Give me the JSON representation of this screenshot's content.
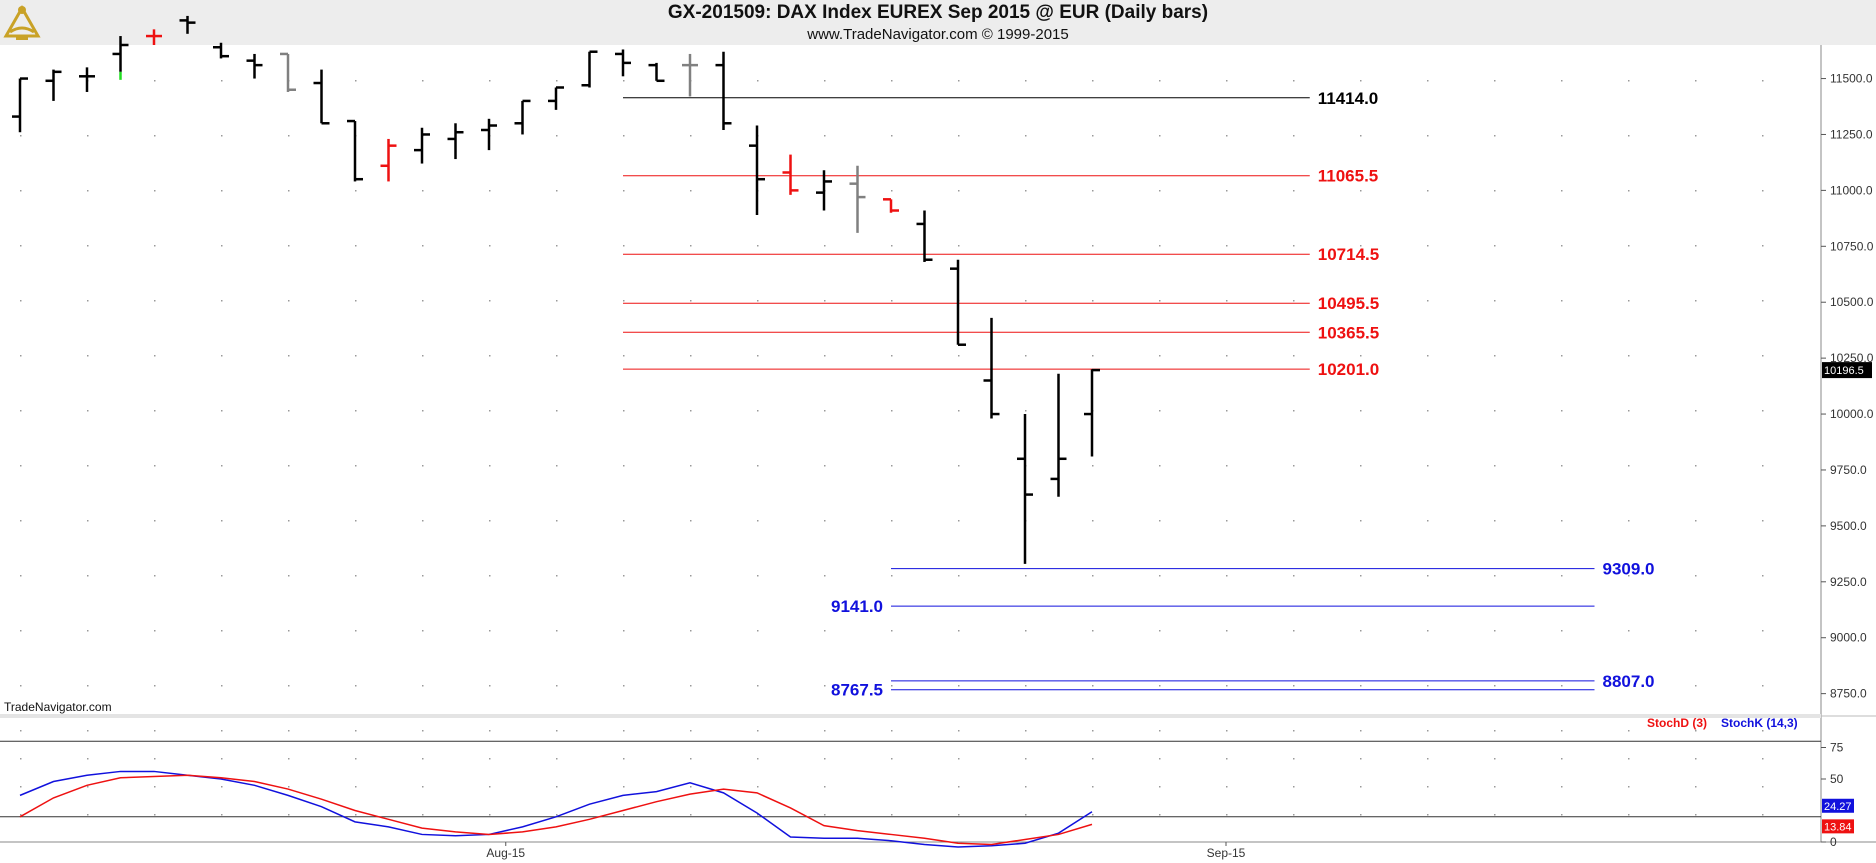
{
  "header": {
    "title": "GX-201509:  DAX Index EUREX Sep 2015 @ EUR  (Daily bars)",
    "subtitle": "www.TradeNavigator.com © 1999-2015",
    "logo_icon": "sextant-icon"
  },
  "watermark": "TradeNavigator.com",
  "colors": {
    "bar_up": "#000000",
    "bar_red": "#ee1111",
    "bar_gray": "#808080",
    "bar_tick_green": "#22dd22",
    "resistance": "#ee1111",
    "support": "#1111dd",
    "pivot": "#000000",
    "stoch_d": "#ee1111",
    "stoch_k": "#1111dd"
  },
  "chart_data": [
    {
      "type": "ohlc",
      "ylim": [
        8650,
        11650
      ],
      "y_ticks": [
        "11500.0",
        "11250.0",
        "11000.0",
        "10750.0",
        "10500.0",
        "10250.0",
        "10000.0",
        "9750.0",
        "9500.0",
        "9250.0",
        "9000.0",
        "8750.0"
      ],
      "last_price_label": "10196.5",
      "x_labels": [
        {
          "label": "Aug-15",
          "index": 14.5
        },
        {
          "label": "Sep-15",
          "index": 36
        }
      ],
      "bars": [
        {
          "o": 11330,
          "h": 11500,
          "l": 11260,
          "c": 11500,
          "color": "black"
        },
        {
          "o": 11490,
          "h": 11540,
          "l": 11400,
          "c": 11530,
          "color": "black"
        },
        {
          "o": 11510,
          "h": 11550,
          "l": 11440,
          "c": 11510,
          "color": "black"
        },
        {
          "o": 11610,
          "h": 11690,
          "l": 11530,
          "c": 11650,
          "color": "green_tick"
        },
        {
          "o": 11690,
          "h": 11720,
          "l": 11650,
          "c": 11690,
          "color": "red"
        },
        {
          "o": 11760,
          "h": 11780,
          "l": 11700,
          "c": 11750,
          "color": "black"
        },
        {
          "o": 11640,
          "h": 11660,
          "l": 11590,
          "c": 11600,
          "color": "black"
        },
        {
          "o": 11580,
          "h": 11610,
          "l": 11500,
          "c": 11560,
          "color": "black"
        },
        {
          "o": 11610,
          "h": 11610,
          "l": 11440,
          "c": 11450,
          "color": "gray"
        },
        {
          "o": 11480,
          "h": 11540,
          "l": 11300,
          "c": 11300,
          "color": "black"
        },
        {
          "o": 11310,
          "h": 11310,
          "l": 11040,
          "c": 11050,
          "color": "black"
        },
        {
          "o": 11110,
          "h": 11230,
          "l": 11040,
          "c": 11200,
          "color": "red"
        },
        {
          "o": 11180,
          "h": 11280,
          "l": 11120,
          "c": 11250,
          "color": "black"
        },
        {
          "o": 11230,
          "h": 11300,
          "l": 11140,
          "c": 11260,
          "color": "black"
        },
        {
          "o": 11270,
          "h": 11320,
          "l": 11180,
          "c": 11290,
          "color": "black"
        },
        {
          "o": 11300,
          "h": 11400,
          "l": 11250,
          "c": 11400,
          "color": "black"
        },
        {
          "o": 11400,
          "h": 11460,
          "l": 11360,
          "c": 11460,
          "color": "black"
        },
        {
          "o": 11470,
          "h": 11620,
          "l": 11460,
          "c": 11620,
          "color": "black"
        },
        {
          "o": 11610,
          "h": 11630,
          "l": 11510,
          "c": 11570,
          "color": "black"
        },
        {
          "o": 11560,
          "h": 11570,
          "l": 11490,
          "c": 11490,
          "color": "black"
        },
        {
          "o": 11560,
          "h": 11610,
          "l": 11420,
          "c": 11560,
          "color": "gray"
        },
        {
          "o": 11560,
          "h": 11620,
          "l": 11270,
          "c": 11300,
          "color": "black"
        },
        {
          "o": 11200,
          "h": 11290,
          "l": 10890,
          "c": 11050,
          "color": "black"
        },
        {
          "o": 11080,
          "h": 11160,
          "l": 10980,
          "c": 11000,
          "color": "red"
        },
        {
          "o": 10990,
          "h": 11090,
          "l": 10910,
          "c": 11040,
          "color": "black"
        },
        {
          "o": 11030,
          "h": 11110,
          "l": 10810,
          "c": 10970,
          "color": "gray"
        },
        {
          "o": 10960,
          "h": 10960,
          "l": 10900,
          "c": 10910,
          "color": "red"
        },
        {
          "o": 10850,
          "h": 10910,
          "l": 10680,
          "c": 10690,
          "color": "black"
        },
        {
          "o": 10650,
          "h": 10690,
          "l": 10310,
          "c": 10310,
          "color": "black"
        },
        {
          "o": 10150,
          "h": 10430,
          "l": 9980,
          "c": 10000,
          "color": "black"
        },
        {
          "o": 9800,
          "h": 10000,
          "l": 9330,
          "c": 9640,
          "color": "black"
        },
        {
          "o": 9710,
          "h": 10180,
          "l": 9630,
          "c": 9800,
          "color": "black"
        },
        {
          "o": 10000,
          "h": 10200,
          "l": 9810,
          "c": 10196.5,
          "color": "black"
        }
      ],
      "levels": [
        {
          "value": 11414.0,
          "label": "11414.0",
          "color": "#000000",
          "from": 18,
          "to": 38.5,
          "label_side": "right"
        },
        {
          "value": 11065.5,
          "label": "11065.5",
          "color": "#ee1111",
          "from": 18,
          "to": 38.5,
          "label_side": "right"
        },
        {
          "value": 10714.5,
          "label": "10714.5",
          "color": "#ee1111",
          "from": 18,
          "to": 38.5,
          "label_side": "right"
        },
        {
          "value": 10495.5,
          "label": "10495.5",
          "color": "#ee1111",
          "from": 18,
          "to": 38.5,
          "label_side": "right"
        },
        {
          "value": 10365.5,
          "label": "10365.5",
          "color": "#ee1111",
          "from": 18,
          "to": 38.5,
          "label_side": "right"
        },
        {
          "value": 10201.0,
          "label": "10201.0",
          "color": "#ee1111",
          "from": 18,
          "to": 38.5,
          "label_side": "right"
        },
        {
          "value": 9309.0,
          "label": "9309.0",
          "color": "#1111dd",
          "from": 26,
          "to": 47,
          "label_side": "right"
        },
        {
          "value": 9141.0,
          "label": "9141.0",
          "color": "#1111dd",
          "from": 26,
          "to": 47,
          "label_side": "left"
        },
        {
          "value": 8807.0,
          "label": "8807.0",
          "color": "#1111dd",
          "from": 26,
          "to": 47,
          "label_side": "right"
        },
        {
          "value": 8767.5,
          "label": "8767.5",
          "color": "#1111dd",
          "from": 26,
          "to": 47,
          "label_side": "left"
        }
      ]
    },
    {
      "type": "line",
      "title": "",
      "ylim": [
        0,
        100
      ],
      "y_ticks": [
        "75",
        "50",
        "0"
      ],
      "ref_lines": [
        80,
        20
      ],
      "legend": [
        "StochD (3)",
        "StochK (14,3)"
      ],
      "series": [
        {
          "name": "StochK (14,3)",
          "color": "#1111dd",
          "value_label": "24.27",
          "x": [
            0,
            1,
            2,
            3,
            4,
            5,
            6,
            7,
            8,
            9,
            10,
            11,
            12,
            13,
            14,
            15,
            16,
            17,
            18,
            19,
            20,
            21,
            22,
            23,
            24,
            25,
            26,
            27,
            28,
            29,
            30,
            31,
            32
          ],
          "values": [
            37,
            48,
            53,
            56,
            56,
            53,
            50,
            45,
            37,
            28,
            16,
            12,
            6,
            5,
            6,
            12,
            20,
            30,
            37,
            40,
            47,
            39,
            23,
            4,
            3,
            3,
            1,
            -2,
            -4,
            -3,
            -1,
            7,
            24
          ]
        },
        {
          "name": "StochD (3)",
          "color": "#ee1111",
          "value_label": "13.84",
          "x": [
            0,
            1,
            2,
            3,
            4,
            5,
            6,
            7,
            8,
            9,
            10,
            11,
            12,
            13,
            14,
            15,
            16,
            17,
            18,
            19,
            20,
            21,
            22,
            23,
            24,
            25,
            26,
            27,
            28,
            29,
            30,
            31,
            32
          ],
          "values": [
            20,
            35,
            45,
            51,
            52,
            53,
            51,
            48,
            42,
            34,
            25,
            18,
            11,
            8,
            6,
            8,
            12,
            18,
            25,
            32,
            38,
            42,
            39,
            27,
            13,
            9,
            6,
            3,
            -1,
            -2,
            2,
            6,
            14
          ]
        }
      ]
    }
  ]
}
